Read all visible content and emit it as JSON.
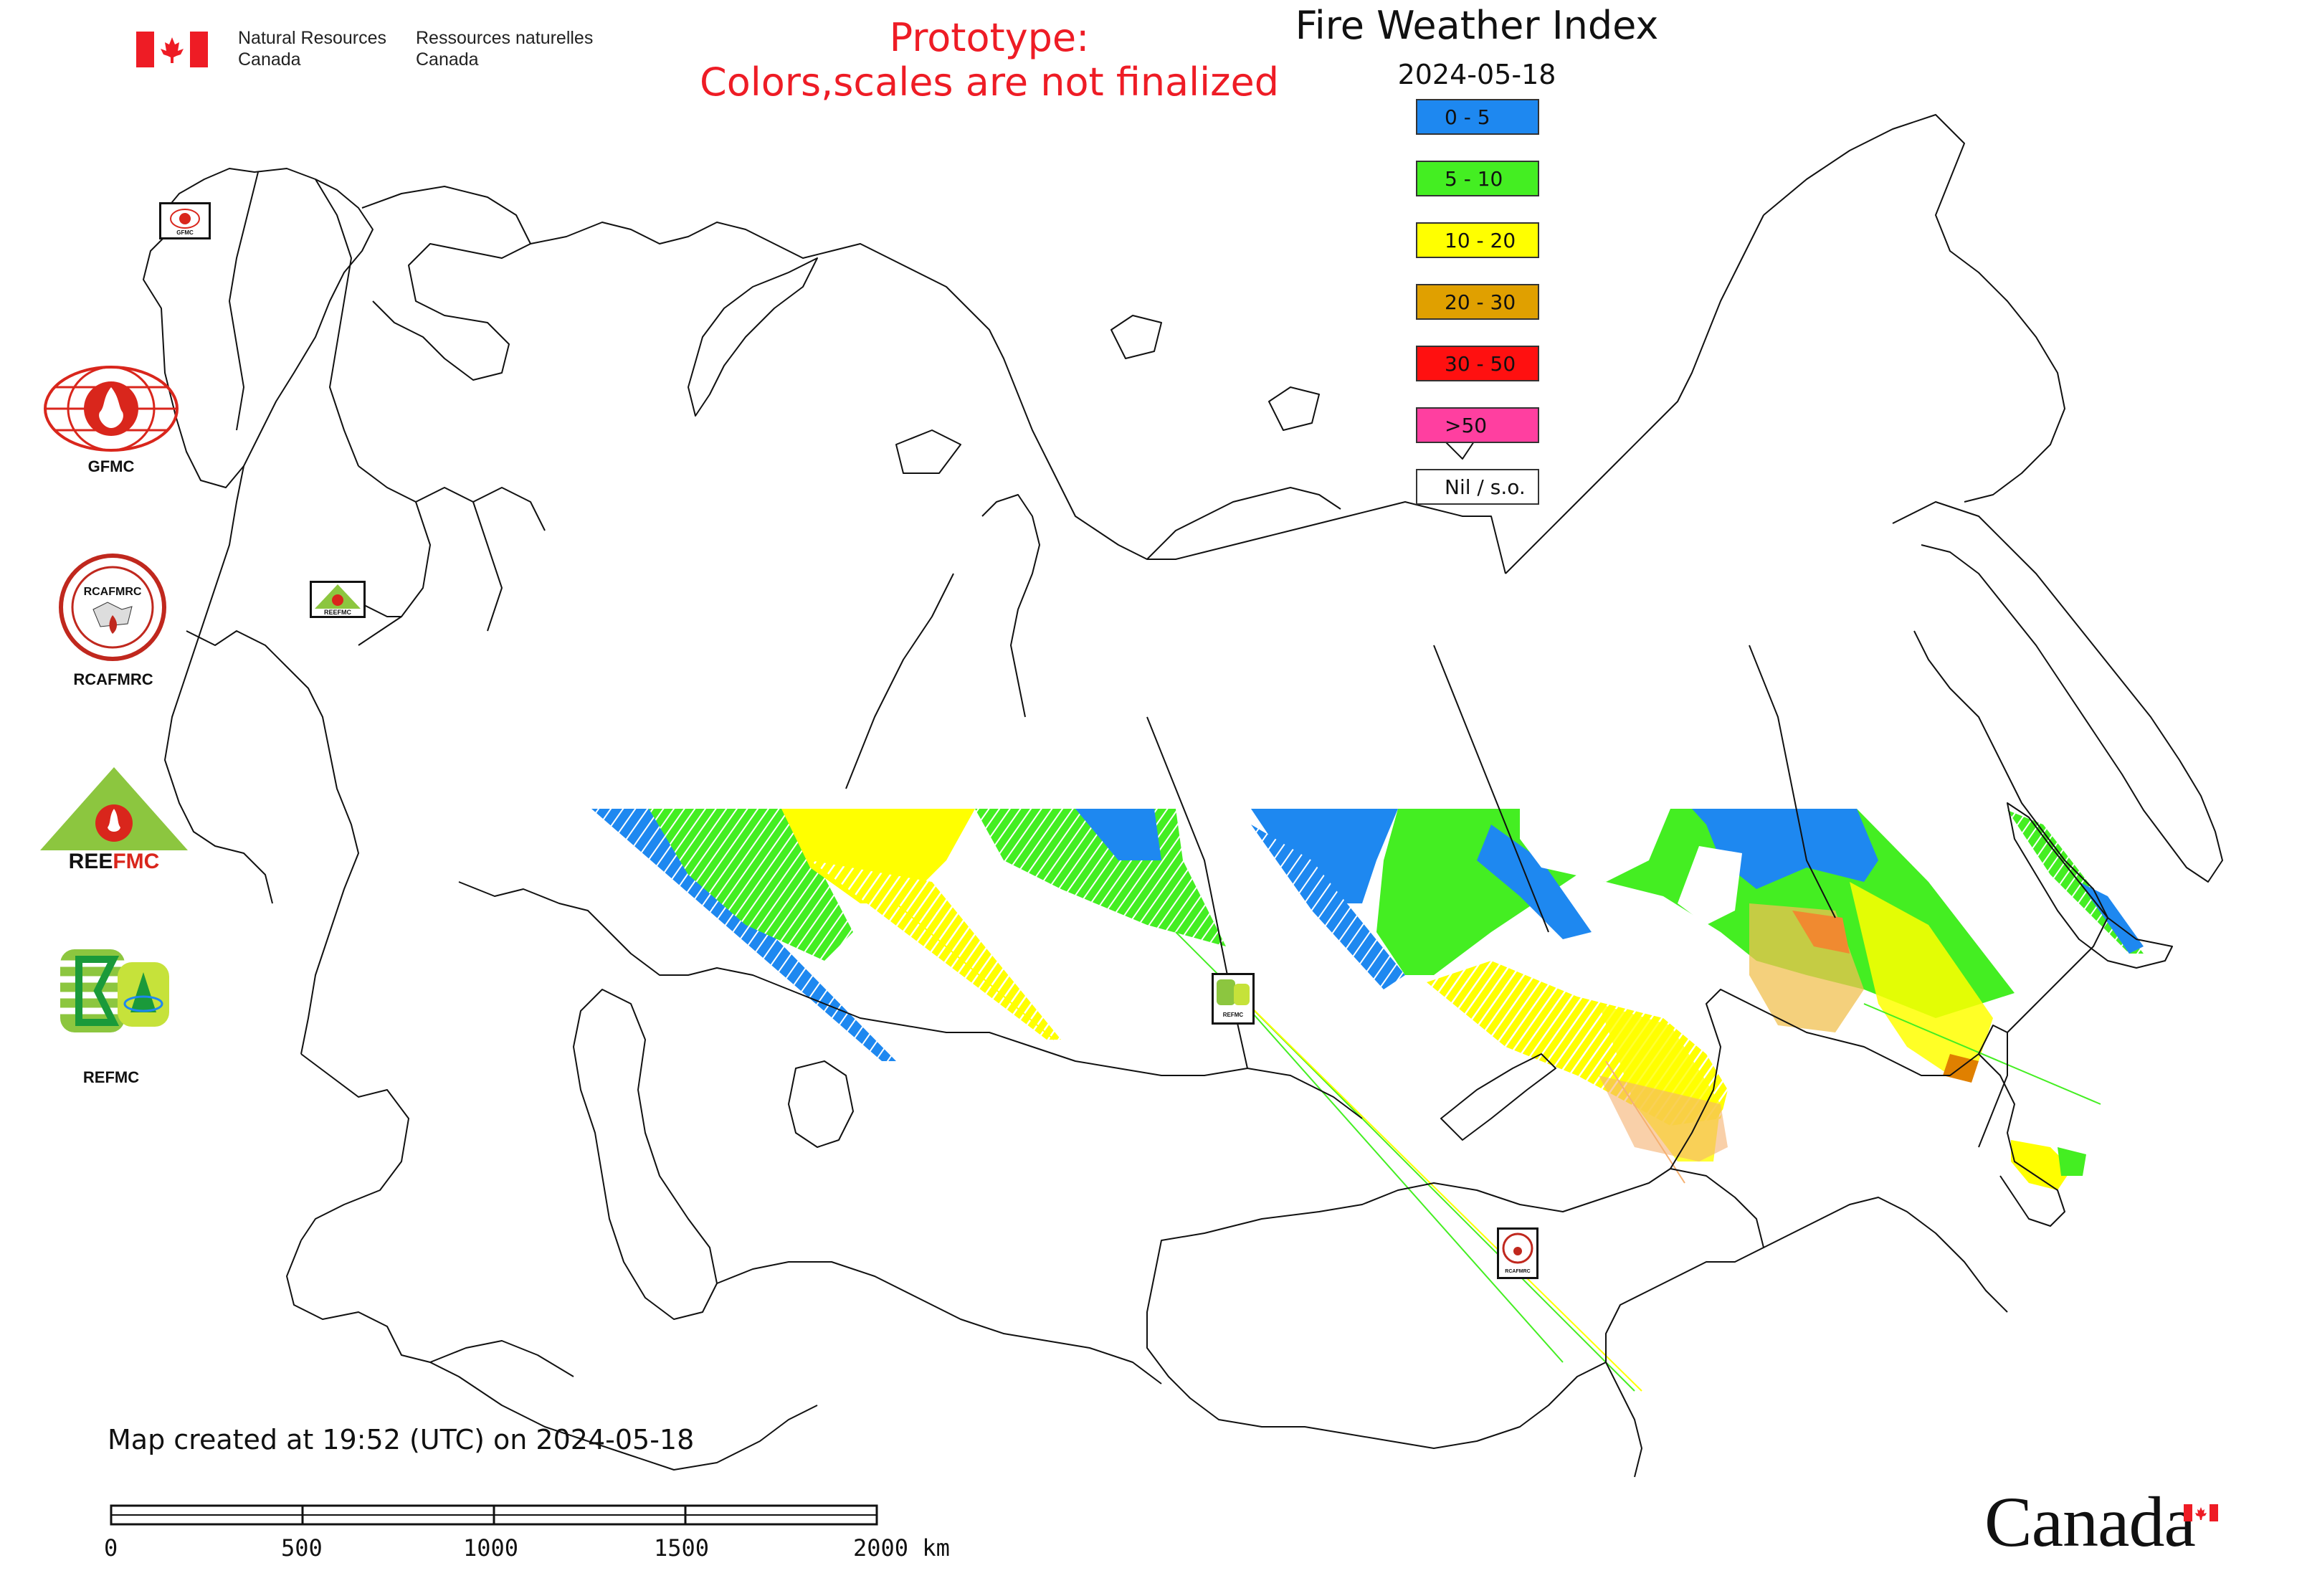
{
  "title": "Fire Weather Index",
  "date": "2024-05-18",
  "prototype_note": [
    "Prototype:",
    "Colors,scales are not finalized"
  ],
  "agency": {
    "name_en": [
      "Natural Resources",
      "Canada"
    ],
    "name_fr": [
      "Ressources naturelles",
      "Canada"
    ],
    "wordmark": "Canada"
  },
  "legend": [
    {
      "label": "0 - 5",
      "color": "#1e88f0"
    },
    {
      "label": "5 - 10",
      "color": "#44ee22"
    },
    {
      "label": "10 - 20",
      "color": "#ffff00"
    },
    {
      "label": "20 - 30",
      "color": "#e0a000"
    },
    {
      "label": "30 - 50",
      "color": "#ff1010"
    },
    {
      "label": ">50",
      "color": "#ff3fa0"
    },
    {
      "label": "Nil / s.o.",
      "color": "#ffffff"
    }
  ],
  "organizations": [
    {
      "label": "GFMC",
      "icon": "gfmc-logo"
    },
    {
      "label": "RCAFMRC",
      "icon": "rcafmrc-logo"
    },
    {
      "label": "",
      "icon": "reefmc-logo"
    },
    {
      "label": "REFMC",
      "icon": "refmc-logo"
    }
  ],
  "map_badges": {
    "gfmc": "GFMC",
    "reefmc": "REEFMC",
    "refmc": "REFMC",
    "rcafmrc": "RCAFMRC"
  },
  "footer": {
    "created": "Map created at 19:52 (UTC) on 2024-05-18"
  },
  "scale_bar": {
    "ticks": [
      "0",
      "500",
      "1000",
      "1500",
      "2000 km"
    ]
  }
}
